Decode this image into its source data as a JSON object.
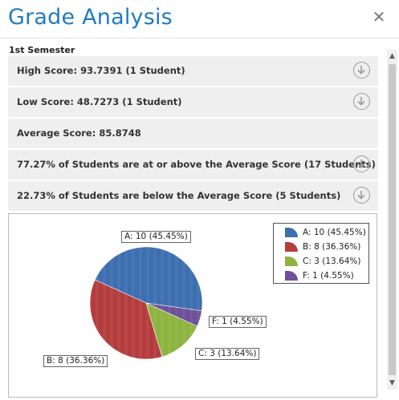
{
  "dialog": {
    "title": "Grade Analysis",
    "close_icon": "close-icon",
    "semester": "1st Semester"
  },
  "rows": [
    {
      "label": "High Score: 93.7391 (1 Student)",
      "has_download": true
    },
    {
      "label": "Low Score: 48.7273 (1 Student)",
      "has_download": true
    },
    {
      "label": "Average Score: 85.8748",
      "has_download": false
    },
    {
      "label": "77.27% of Students are at or above the Average Score (17 Students)",
      "has_download": true
    },
    {
      "label": "22.73% of Students are below the Average Score (5 Students)",
      "has_download": true
    }
  ],
  "chart_data": {
    "type": "pie",
    "categories": [
      "A",
      "B",
      "C",
      "F"
    ],
    "values": [
      10,
      8,
      3,
      1
    ],
    "slice_labels": [
      "A: 10 (45.45%)",
      "B: 8 (36.36%)",
      "C: 3 (13.64%)",
      "F: 1 (4.55%)"
    ],
    "legend": [
      "A: 10 (45.45%)",
      "B: 8 (36.36%)",
      "C: 3 (13.64%)",
      "F: 1 (4.55%)"
    ],
    "colors": [
      "#3d6eb0",
      "#b43c3c",
      "#8db43f",
      "#6e4f99"
    ],
    "legend_placement": "top-right"
  }
}
